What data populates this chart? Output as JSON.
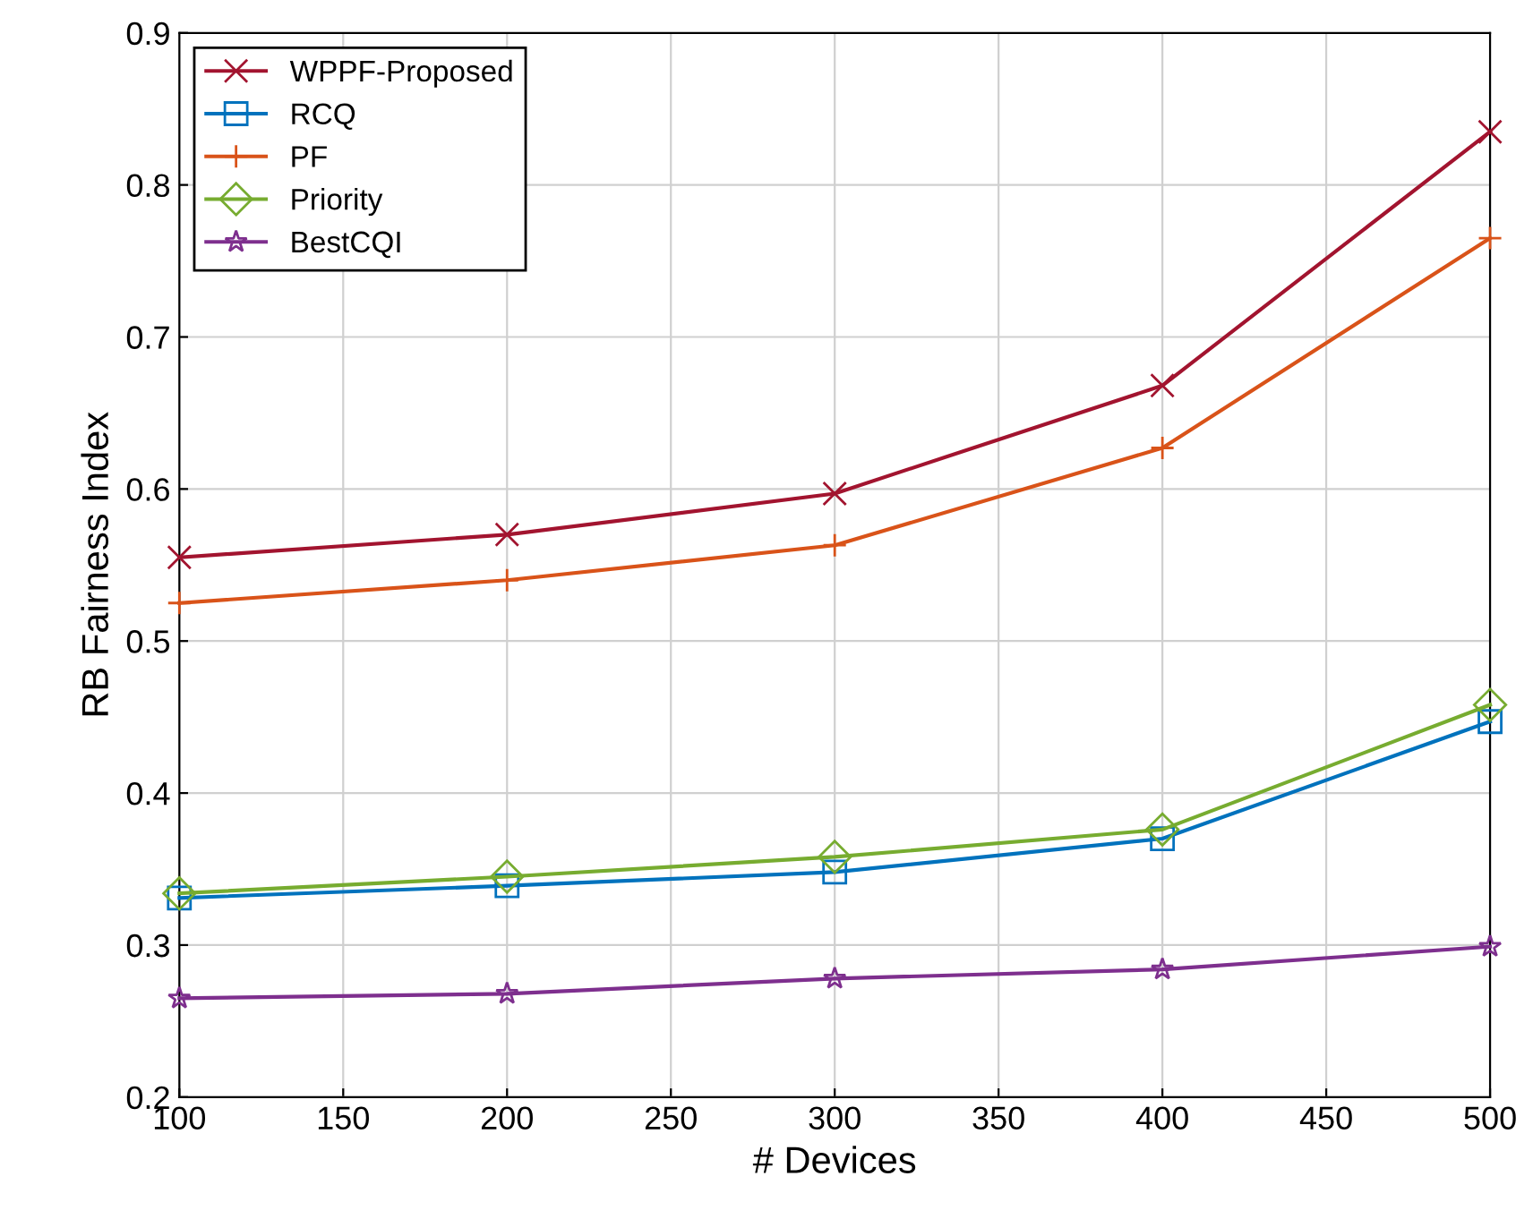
{
  "chart_data": {
    "type": "line",
    "xlabel": "# Devices",
    "ylabel": "RB Fairness Index",
    "x": [
      100,
      200,
      300,
      400,
      500
    ],
    "series": [
      {
        "name": "WPPF-Proposed",
        "color": "#a2142f",
        "marker": "cross",
        "values": [
          0.555,
          0.57,
          0.597,
          0.668,
          0.835
        ]
      },
      {
        "name": "RCQ",
        "color": "#0072bd",
        "marker": "square",
        "values": [
          0.331,
          0.339,
          0.348,
          0.37,
          0.447
        ]
      },
      {
        "name": "PF",
        "color": "#d95319",
        "marker": "plus",
        "values": [
          0.525,
          0.54,
          0.563,
          0.627,
          0.765
        ]
      },
      {
        "name": "Priority",
        "color": "#77ac30",
        "marker": "diamond",
        "values": [
          0.334,
          0.345,
          0.358,
          0.376,
          0.458
        ]
      },
      {
        "name": "BestCQI",
        "color": "#7e2f8e",
        "marker": "star",
        "values": [
          0.265,
          0.268,
          0.278,
          0.284,
          0.299
        ]
      }
    ],
    "xlim": [
      100,
      500
    ],
    "ylim": [
      0.2,
      0.9
    ],
    "xticks": [
      100,
      150,
      200,
      250,
      300,
      350,
      400,
      450,
      500
    ],
    "yticks": [
      0.2,
      0.3,
      0.4,
      0.5,
      0.6,
      0.7,
      0.8,
      0.9
    ],
    "grid": true,
    "legend": "top left",
    "line_style": "solid"
  }
}
